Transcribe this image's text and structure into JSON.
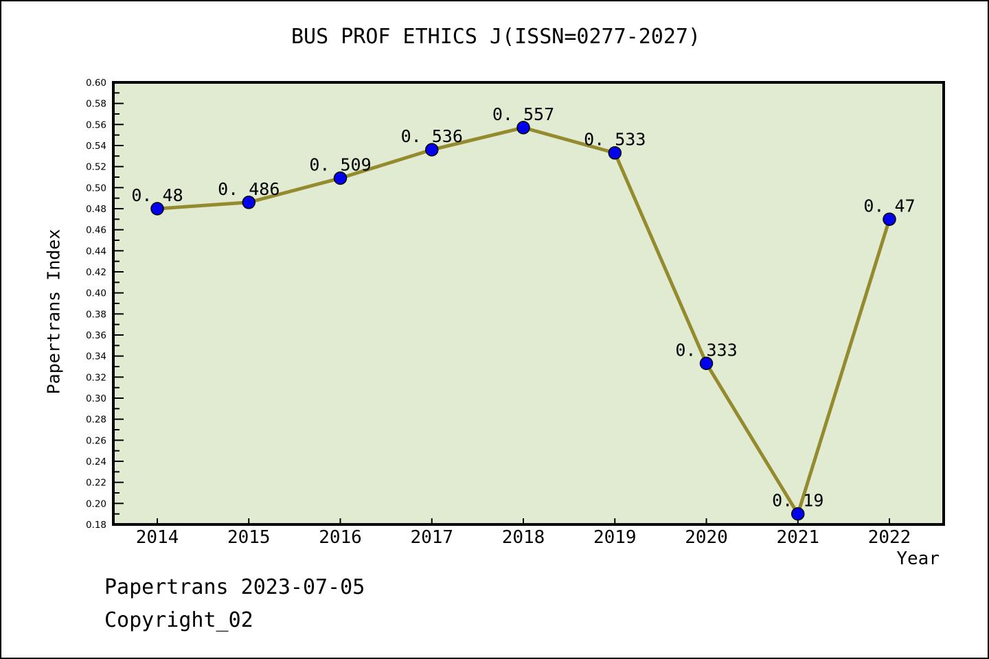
{
  "title": "BUS PROF ETHICS J(ISSN=0277-2027)",
  "footer": {
    "line1": "Papertrans 2023-07-05",
    "line2": "Copyright_02"
  },
  "chart_data": {
    "type": "line",
    "title": "BUS PROF ETHICS J(ISSN=0277-2027)",
    "xlabel": "Year",
    "ylabel": "Papertrans Index",
    "categories": [
      "2014",
      "2015",
      "2016",
      "2017",
      "2018",
      "2019",
      "2020",
      "2021",
      "2022"
    ],
    "series": [
      {
        "name": "Papertrans Index",
        "values": [
          0.48,
          0.486,
          0.509,
          0.536,
          0.557,
          0.533,
          0.333,
          0.19,
          0.47
        ]
      }
    ],
    "point_labels": [
      "0.48",
      "0.486",
      "0.509",
      "0.536",
      "0.557",
      "0.533",
      "0.333",
      "0.19",
      "0.47"
    ],
    "ylim": [
      0.18,
      0.6
    ],
    "ytick_major": 0.02,
    "ytick_minor": 0.01,
    "grid": false,
    "legend": "none",
    "colors": {
      "line": "#948A2E",
      "marker": "#0000EE",
      "marker_edge": "#000000",
      "plot_bg": "#E0EBD2",
      "figure_bg": "#FFFFFF",
      "axis_border": "#000000",
      "text": "#000000"
    }
  }
}
